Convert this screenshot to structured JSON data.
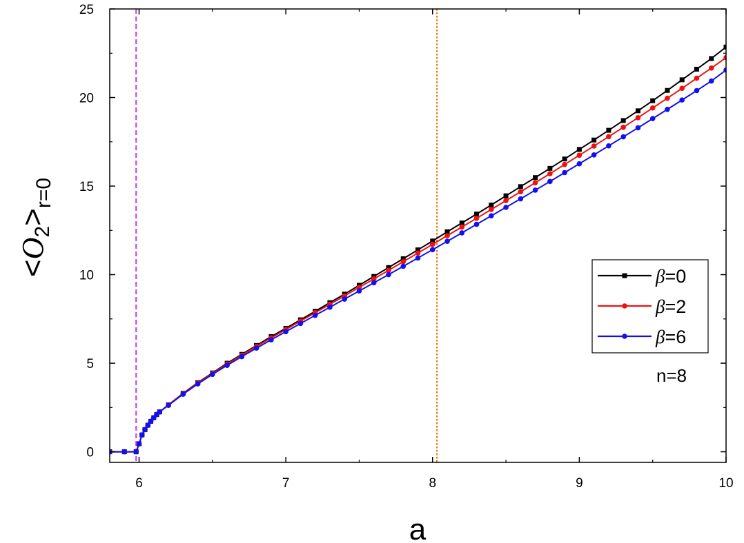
{
  "chart_data": {
    "type": "line",
    "title": "",
    "xlabel": "a",
    "ylabel": {
      "open": "<",
      "symbol": "O",
      "sub": "2",
      "close": ">",
      "subscript": "r=0"
    },
    "xlim": [
      5.8,
      10
    ],
    "ylim": [
      -0.6,
      25
    ],
    "xticks": [
      6,
      7,
      8,
      9,
      10
    ],
    "yticks": [
      0,
      5,
      10,
      15,
      20,
      25
    ],
    "grid": false,
    "legend_position": "right",
    "annotation": "n=8",
    "vlines": [
      {
        "x": 5.98,
        "color": "#cc44ee",
        "style": "dashed"
      },
      {
        "x": 8.03,
        "color": "#ee7700",
        "style": "dotted"
      }
    ],
    "x": [
      5.8,
      5.9,
      5.98,
      6.0,
      6.02,
      6.04,
      6.06,
      6.08,
      6.1,
      6.12,
      6.14,
      6.2,
      6.3,
      6.4,
      6.5,
      6.6,
      6.7,
      6.8,
      6.9,
      7.0,
      7.1,
      7.2,
      7.3,
      7.4,
      7.5,
      7.6,
      7.7,
      7.8,
      7.9,
      8.0,
      8.1,
      8.2,
      8.3,
      8.4,
      8.5,
      8.6,
      8.7,
      8.8,
      8.9,
      9.0,
      9.1,
      9.2,
      9.3,
      9.4,
      9.5,
      9.6,
      9.7,
      9.8,
      9.9,
      10.0
    ],
    "series": [
      {
        "name": "β=0",
        "color": "#000000",
        "marker": "square",
        "values": [
          0,
          0,
          0,
          0.45,
          0.95,
          1.25,
          1.5,
          1.72,
          1.92,
          2.1,
          2.25,
          2.65,
          3.3,
          3.9,
          4.45,
          5.0,
          5.5,
          6.0,
          6.5,
          6.97,
          7.45,
          7.93,
          8.42,
          8.9,
          9.4,
          9.9,
          10.4,
          10.9,
          11.4,
          11.9,
          12.42,
          12.92,
          13.42,
          13.93,
          14.45,
          14.97,
          15.48,
          16.0,
          16.53,
          17.07,
          17.6,
          18.15,
          18.7,
          19.25,
          19.82,
          20.4,
          21.0,
          21.6,
          22.2,
          22.85
        ]
      },
      {
        "name": "β=2",
        "color": "#ee1111",
        "marker": "circle",
        "values": [
          0,
          0,
          0,
          0.45,
          0.95,
          1.25,
          1.5,
          1.72,
          1.92,
          2.1,
          2.25,
          2.65,
          3.28,
          3.87,
          4.42,
          4.95,
          5.45,
          5.95,
          6.43,
          6.9,
          7.38,
          7.85,
          8.32,
          8.8,
          9.28,
          9.76,
          10.24,
          10.73,
          11.22,
          11.71,
          12.2,
          12.69,
          13.18,
          13.68,
          14.18,
          14.68,
          15.19,
          15.7,
          16.22,
          16.74,
          17.26,
          17.79,
          18.32,
          18.86,
          19.41,
          19.96,
          20.52,
          21.09,
          21.66,
          22.25
        ]
      },
      {
        "name": "β=6",
        "color": "#1111ee",
        "marker": "circle",
        "values": [
          0,
          0,
          0,
          0.45,
          0.95,
          1.25,
          1.5,
          1.72,
          1.92,
          2.1,
          2.25,
          2.62,
          3.25,
          3.83,
          4.37,
          4.88,
          5.37,
          5.85,
          6.32,
          6.78,
          7.24,
          7.7,
          8.16,
          8.62,
          9.08,
          9.54,
          10.0,
          10.47,
          10.94,
          11.41,
          11.88,
          12.36,
          12.84,
          13.32,
          13.8,
          14.28,
          14.77,
          15.26,
          15.76,
          16.26,
          16.76,
          17.27,
          17.78,
          18.29,
          18.81,
          19.33,
          19.86,
          20.39,
          20.93,
          21.55
        ]
      }
    ]
  }
}
